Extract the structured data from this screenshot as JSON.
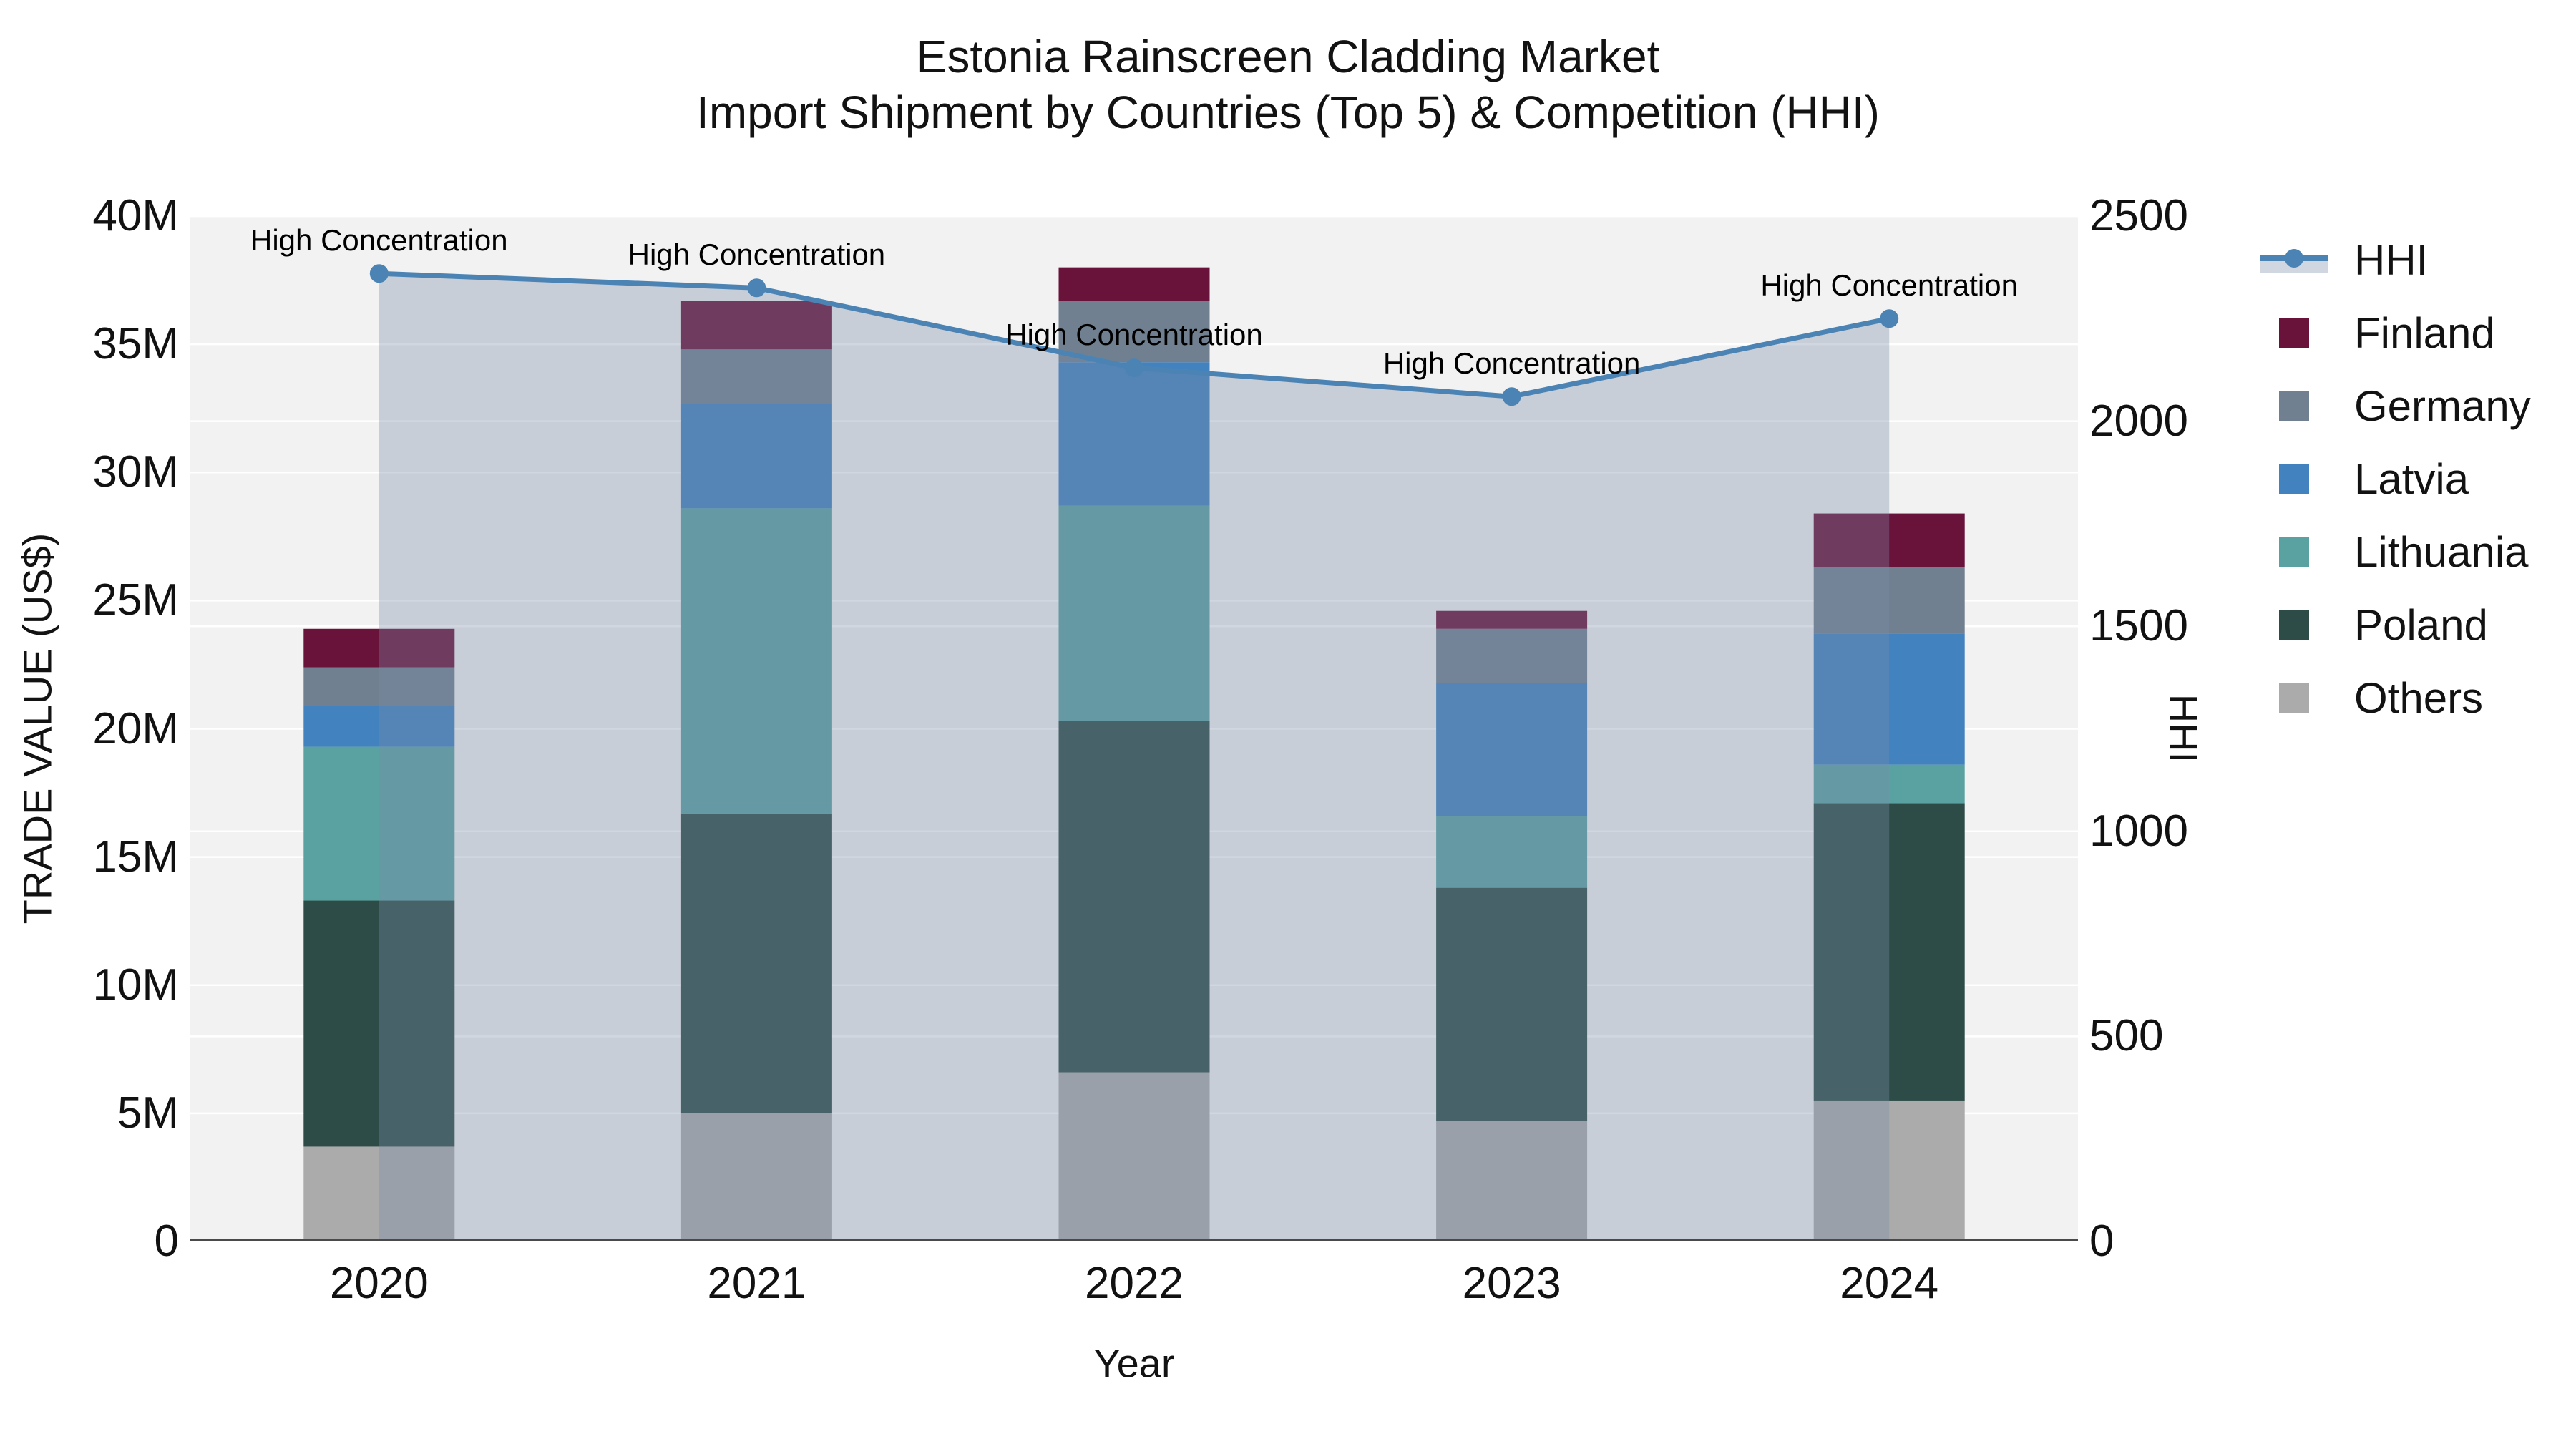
{
  "title": {
    "line1": "Estonia Rainscreen Cladding Market",
    "line2": "Import Shipment by Countries (Top 5) & Competition (HHI)"
  },
  "axes": {
    "x": {
      "title": "Year",
      "tick_labels": [
        "2020",
        "2021",
        "2022",
        "2023",
        "2024"
      ]
    },
    "y_left": {
      "title": "TRADE VALUE (US$)",
      "tick_labels": [
        "0",
        "5M",
        "10M",
        "15M",
        "20M",
        "25M",
        "30M",
        "35M",
        "40M"
      ],
      "range": [
        0,
        40000000
      ]
    },
    "y_right": {
      "title": "HHI",
      "tick_labels": [
        "0",
        "500",
        "1000",
        "1500",
        "2000",
        "2500"
      ],
      "range": [
        0,
        2500
      ]
    }
  },
  "legend": {
    "items": [
      {
        "label": "HHI",
        "type": "line",
        "color": "#4B84B4"
      },
      {
        "label": "Finland",
        "type": "square",
        "color": "#69123A"
      },
      {
        "label": "Germany",
        "type": "square",
        "color": "#708090"
      },
      {
        "label": "Latvia",
        "type": "square",
        "color": "#4182BF"
      },
      {
        "label": "Lithuania",
        "type": "square",
        "color": "#5AA2A2"
      },
      {
        "label": "Poland",
        "type": "square",
        "color": "#2D4C47"
      },
      {
        "label": "Others",
        "type": "square",
        "color": "#ABABAB"
      }
    ]
  },
  "annotation_text": "High Concentration",
  "colors": {
    "plot_background": "#F2F2F2",
    "gridline": "#FFFFFF",
    "axis_line": "#4A4A4A",
    "hhi_line": "#4B84B4",
    "hhi_fill": "rgba(122,140,168,0.35)",
    "legend_fill_band": "#D0D7E1"
  },
  "chart_data": {
    "type": "combo-stacked-bar-line",
    "categories": [
      "2020",
      "2021",
      "2022",
      "2023",
      "2024"
    ],
    "bar_value_unit": "millions US$",
    "stack_order_bottom_to_top": [
      "Others",
      "Poland",
      "Lithuania",
      "Latvia",
      "Germany",
      "Finland"
    ],
    "bar_series": [
      {
        "name": "Finland",
        "color": "#69123A",
        "values": [
          1.5,
          1.9,
          1.3,
          0.7,
          2.1
        ]
      },
      {
        "name": "Germany",
        "color": "#708090",
        "values": [
          1.5,
          2.1,
          2.4,
          2.1,
          2.6
        ]
      },
      {
        "name": "Latvia",
        "color": "#4182BF",
        "values": [
          1.6,
          4.1,
          5.6,
          5.2,
          5.1
        ]
      },
      {
        "name": "Lithuania",
        "color": "#5AA2A2",
        "values": [
          6.0,
          11.9,
          8.4,
          2.8,
          1.5
        ]
      },
      {
        "name": "Poland",
        "color": "#2D4C47",
        "values": [
          9.6,
          11.7,
          13.7,
          9.1,
          11.6
        ]
      },
      {
        "name": "Others",
        "color": "#ABABAB",
        "values": [
          3.7,
          5.0,
          6.6,
          4.7,
          5.5
        ]
      }
    ],
    "bar_totals_millions": [
      23.9,
      36.7,
      38.0,
      24.6,
      28.4
    ],
    "line_series": {
      "name": "HHI",
      "axis": "right",
      "values": [
        2360,
        2325,
        2130,
        2060,
        2250
      ],
      "fill_to_zero": true,
      "marker": "circle",
      "point_annotations": [
        "High Concentration",
        "High Concentration",
        "High Concentration",
        "High Concentration",
        "High Concentration"
      ]
    },
    "ylim_left_millions": [
      0,
      40
    ],
    "ylim_right": [
      0,
      2500
    ],
    "grid": "horizontal-both-axes",
    "legend_position": "right"
  }
}
